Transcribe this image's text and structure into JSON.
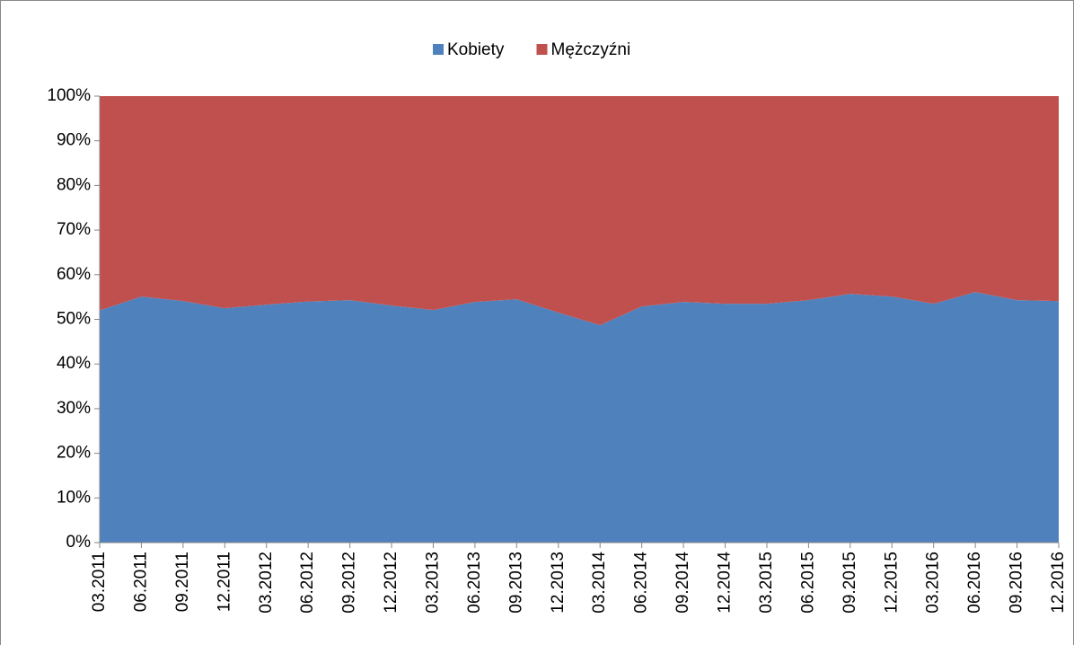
{
  "chart_data": {
    "type": "area",
    "stacked": true,
    "categories": [
      "03.2011",
      "06.2011",
      "09.2011",
      "12.2011",
      "03.2012",
      "06.2012",
      "09.2012",
      "12.2012",
      "03.2013",
      "06.2013",
      "09.2013",
      "12.2013",
      "03.2014",
      "06.2014",
      "09.2014",
      "12.2014",
      "03.2015",
      "06.2015",
      "09.2015",
      "12.2015",
      "03.2016",
      "06.2016",
      "09.2016",
      "12.2016"
    ],
    "series": [
      {
        "name": "Kobiety",
        "color": "#4f81bd",
        "values": [
          52,
          55.1,
          54.1,
          52.5,
          53.3,
          54,
          54.3,
          53.1,
          52.1,
          53.9,
          54.5,
          51.5,
          48.7,
          52.9,
          53.9,
          53.5,
          53.5,
          54.3,
          55.7,
          55.1,
          53.5,
          56.1,
          54.3,
          54.1
        ]
      },
      {
        "name": "Mężczyźni",
        "color": "#c0504d",
        "values": [
          48,
          44.9,
          45.9,
          47.5,
          46.7,
          46,
          45.7,
          46.9,
          47.9,
          46.1,
          45.5,
          48.5,
          51.3,
          47.1,
          46.1,
          46.5,
          46.5,
          45.7,
          44.3,
          44.9,
          46.5,
          43.9,
          45.7,
          45.9
        ]
      }
    ],
    "ylim": [
      0,
      100
    ],
    "yticks": [
      {
        "value": 0,
        "label": "0%"
      },
      {
        "value": 10,
        "label": "10%"
      },
      {
        "value": 20,
        "label": "20%"
      },
      {
        "value": 30,
        "label": "30%"
      },
      {
        "value": 40,
        "label": "40%"
      },
      {
        "value": 50,
        "label": "50%"
      },
      {
        "value": 60,
        "label": "60%"
      },
      {
        "value": 70,
        "label": "70%"
      },
      {
        "value": 80,
        "label": "80%"
      },
      {
        "value": 90,
        "label": "90%"
      },
      {
        "value": 100,
        "label": "100%"
      }
    ],
    "legend": "top"
  }
}
